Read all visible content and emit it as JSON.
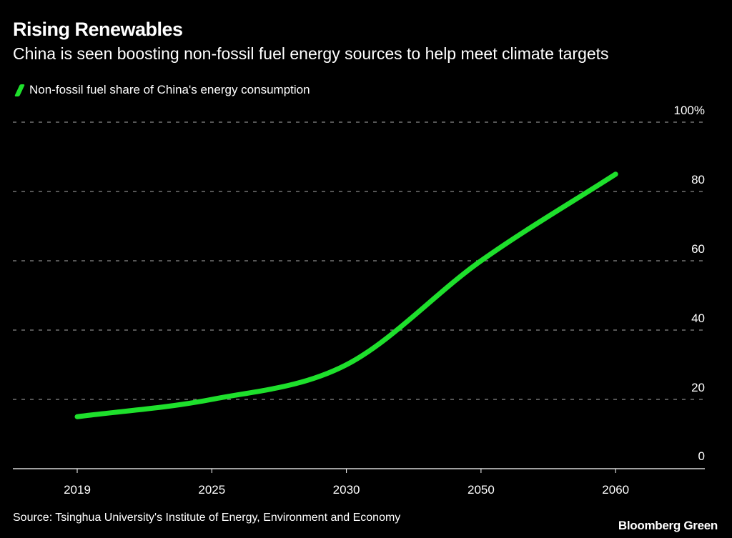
{
  "chart_data": {
    "type": "line",
    "title": "Rising Renewables",
    "subtitle": "China is seen boosting non-fossil fuel energy sources to help meet climate targets",
    "categories": [
      "2019",
      "2025",
      "2030",
      "2050",
      "2060"
    ],
    "series": [
      {
        "name": "Non-fossil fuel share of China's energy consumption",
        "values": [
          15,
          20,
          30,
          60,
          85
        ],
        "color": "#1EE02C"
      }
    ],
    "ylim": [
      0,
      100
    ],
    "yticks": [
      0,
      20,
      40,
      60,
      80,
      100
    ],
    "ytick_labels": [
      "0",
      "20",
      "40",
      "60",
      "80",
      "100%"
    ],
    "xlabel": "",
    "ylabel": "",
    "grid": true,
    "grid_style": "dashed",
    "legend_placement": "top-left",
    "y_axis_side": "right",
    "background": "#000000"
  },
  "source": "Source: Tsinghua University's Institute of Energy, Environment and Economy",
  "brand": "Bloomberg Green"
}
